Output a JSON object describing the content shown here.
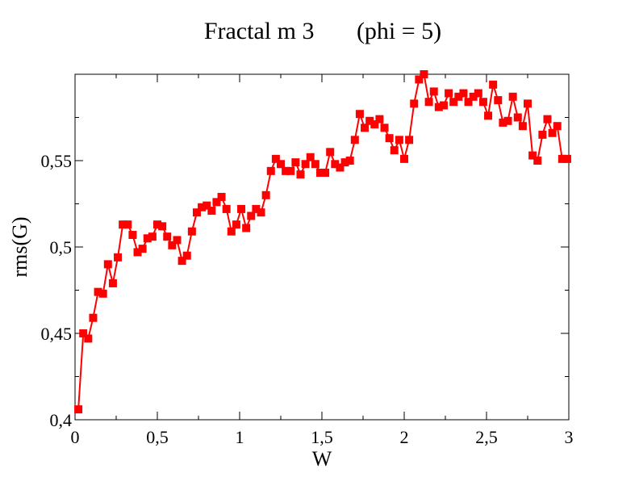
{
  "chart_data": {
    "type": "line",
    "title": "Fractal m 3       (phi = 5)",
    "xlabel": "W",
    "ylabel": "rms(G)",
    "xlim": [
      0,
      3
    ],
    "ylim": [
      0.4,
      0.6
    ],
    "x_ticks": [
      0,
      0.5,
      1,
      1.5,
      2,
      2.5,
      3
    ],
    "x_tick_labels": [
      "0",
      "0,5",
      "1",
      "1,5",
      "2",
      "2,5",
      "3"
    ],
    "y_ticks": [
      0.4,
      0.45,
      0.5,
      0.55
    ],
    "y_tick_labels": [
      "0,4",
      "0,45",
      "0,5",
      "0,55"
    ],
    "grid": false,
    "colors": {
      "series": "#ff0000",
      "axis": "#000000"
    },
    "series": [
      {
        "marker": "square",
        "x": [
          0.02,
          0.05,
          0.08,
          0.11,
          0.14,
          0.17,
          0.2,
          0.23,
          0.26,
          0.29,
          0.32,
          0.35,
          0.38,
          0.41,
          0.44,
          0.47,
          0.5,
          0.53,
          0.56,
          0.59,
          0.62,
          0.65,
          0.68,
          0.71,
          0.74,
          0.77,
          0.8,
          0.83,
          0.86,
          0.89,
          0.92,
          0.95,
          0.98,
          1.01,
          1.04,
          1.07,
          1.1,
          1.13,
          1.16,
          1.19,
          1.22,
          1.25,
          1.28,
          1.31,
          1.34,
          1.37,
          1.4,
          1.43,
          1.46,
          1.49,
          1.52,
          1.55,
          1.58,
          1.61,
          1.64,
          1.67,
          1.7,
          1.73,
          1.76,
          1.79,
          1.82,
          1.85,
          1.88,
          1.91,
          1.94,
          1.97,
          2.0,
          2.03,
          2.06,
          2.09,
          2.12,
          2.15,
          2.18,
          2.21,
          2.24,
          2.27,
          2.3,
          2.33,
          2.36,
          2.39,
          2.42,
          2.45,
          2.48,
          2.51,
          2.54,
          2.57,
          2.6,
          2.63,
          2.66,
          2.69,
          2.72,
          2.75,
          2.78,
          2.81,
          2.84,
          2.87,
          2.9,
          2.93,
          2.96,
          2.99
        ],
        "y": [
          0.406,
          0.45,
          0.447,
          0.459,
          0.474,
          0.473,
          0.49,
          0.479,
          0.494,
          0.513,
          0.513,
          0.507,
          0.497,
          0.499,
          0.505,
          0.506,
          0.513,
          0.512,
          0.506,
          0.501,
          0.504,
          0.492,
          0.495,
          0.509,
          0.52,
          0.523,
          0.524,
          0.521,
          0.526,
          0.529,
          0.522,
          0.509,
          0.513,
          0.522,
          0.511,
          0.518,
          0.522,
          0.52,
          0.53,
          0.544,
          0.551,
          0.548,
          0.544,
          0.544,
          0.549,
          0.542,
          0.548,
          0.552,
          0.548,
          0.543,
          0.543,
          0.555,
          0.548,
          0.546,
          0.549,
          0.55,
          0.562,
          0.577,
          0.569,
          0.573,
          0.571,
          0.574,
          0.569,
          0.563,
          0.556,
          0.562,
          0.551,
          0.562,
          0.583,
          0.597,
          0.6,
          0.584,
          0.59,
          0.581,
          0.582,
          0.589,
          0.584,
          0.587,
          0.589,
          0.584,
          0.587,
          0.589,
          0.584,
          0.576,
          0.594,
          0.585,
          0.572,
          0.573,
          0.587,
          0.575,
          0.57,
          0.583,
          0.553,
          0.55,
          0.565,
          0.574,
          0.566,
          0.57,
          0.551,
          0.551
        ]
      }
    ]
  }
}
